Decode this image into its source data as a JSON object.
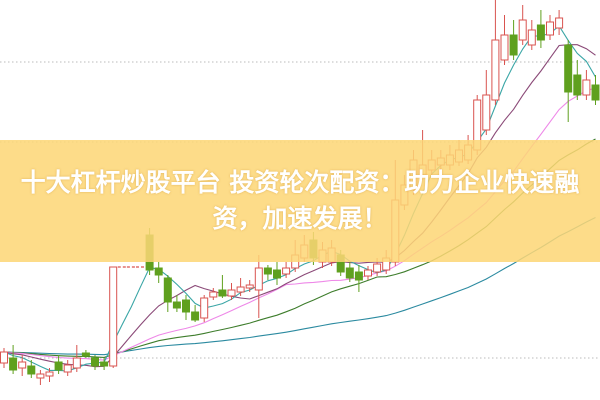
{
  "headline": {
    "line1": "十大杠杆炒股平台 投资轮次配资：助力企业快速融",
    "line2": "资，加速发展！"
  },
  "colors": {
    "up": "#d9534f",
    "down": "#5fa01e",
    "banner": "#fdd676",
    "grid": "#bbbbbb",
    "ma5": "#3aa6a6",
    "ma10": "#8b4a78",
    "ma20": "#ee88e8",
    "ma30": "#3e7d2c",
    "ma60": "#2b8aa0"
  },
  "chart_data": {
    "type": "candlestick",
    "title": "",
    "xlabel": "",
    "ylabel": "",
    "axes_visible": false,
    "grid": "dotted horizontal",
    "ylim": [
      0,
      20
    ],
    "moving_averages": [
      5,
      10,
      20,
      30,
      60
    ],
    "candles_ochl": [
      [
        1.85,
        2.4,
        2.6,
        1.6
      ],
      [
        2.1,
        1.5,
        2.75,
        1.3
      ],
      [
        1.6,
        1.9,
        2.25,
        1.2
      ],
      [
        1.7,
        1.3,
        2.0,
        1.1
      ],
      [
        1.1,
        1.3,
        1.5,
        0.75
      ],
      [
        1.2,
        1.4,
        1.6,
        0.9
      ],
      [
        1.9,
        1.5,
        2.25,
        1.3
      ],
      [
        1.4,
        1.75,
        2.0,
        1.2
      ],
      [
        1.6,
        2.1,
        2.75,
        1.4
      ],
      [
        2.35,
        2.2,
        2.5,
        2.1
      ],
      [
        2.1,
        1.7,
        2.25,
        1.5
      ],
      [
        1.9,
        1.7,
        2.1,
        1.5
      ],
      [
        1.7,
        6.65,
        6.65,
        1.6
      ],
      [
        6.65,
        6.65,
        6.65,
        6.65
      ],
      [
        6.65,
        6.65,
        6.65,
        6.65
      ],
      [
        6.65,
        6.65,
        6.65,
        6.65
      ],
      [
        8.25,
        6.5,
        8.6,
        6.25
      ],
      [
        6.6,
        6.25,
        6.9,
        5.85
      ],
      [
        6.1,
        4.9,
        6.25,
        4.4
      ],
      [
        4.9,
        4.6,
        5.25,
        4.4
      ],
      [
        5.0,
        4.4,
        5.25,
        4.0
      ],
      [
        4.4,
        4.0,
        4.75,
        3.9
      ],
      [
        4.1,
        5.1,
        5.25,
        3.9
      ],
      [
        5.15,
        5.4,
        5.6,
        5.0
      ],
      [
        5.5,
        5.2,
        6.25,
        5.1
      ],
      [
        5.2,
        5.5,
        5.85,
        5.0
      ],
      [
        5.4,
        5.65,
        6.1,
        5.2
      ],
      [
        5.6,
        5.75,
        6.0,
        5.4
      ],
      [
        5.5,
        6.6,
        7.25,
        4.1
      ],
      [
        6.6,
        6.3,
        6.75,
        6.0
      ],
      [
        6.5,
        6.1,
        6.9,
        5.75
      ],
      [
        6.3,
        6.6,
        6.9,
        6.1
      ],
      [
        6.6,
        7.25,
        8.0,
        6.4
      ],
      [
        7.1,
        7.75,
        8.25,
        6.9
      ],
      [
        8.0,
        7.1,
        8.4,
        6.75
      ],
      [
        6.9,
        7.5,
        7.9,
        6.6
      ],
      [
        6.9,
        7.6,
        8.0,
        6.7
      ],
      [
        7.25,
        6.4,
        7.5,
        6.2
      ],
      [
        6.6,
        6.1,
        6.9,
        5.9
      ],
      [
        6.4,
        6.0,
        6.75,
        5.4
      ],
      [
        6.2,
        6.5,
        6.7,
        6.0
      ],
      [
        6.4,
        6.8,
        7.1,
        6.2
      ],
      [
        6.5,
        7.1,
        7.5,
        6.3
      ],
      [
        6.9,
        10.0,
        12.0,
        6.7
      ],
      [
        9.75,
        10.75,
        11.25,
        9.5
      ],
      [
        10.5,
        12.0,
        12.5,
        10.25
      ],
      [
        11.25,
        11.75,
        13.5,
        11.0
      ],
      [
        11.5,
        12.0,
        12.5,
        11.25
      ],
      [
        11.75,
        12.1,
        12.5,
        11.5
      ],
      [
        11.75,
        12.25,
        12.75,
        11.5
      ],
      [
        11.9,
        12.5,
        13.0,
        11.7
      ],
      [
        12.0,
        12.75,
        13.25,
        11.8
      ],
      [
        12.5,
        15.0,
        15.25,
        12.25
      ],
      [
        13.5,
        15.25,
        16.5,
        13.25
      ],
      [
        15.0,
        18.0,
        20.0,
        14.75
      ],
      [
        17.0,
        18.25,
        19.25,
        16.75
      ],
      [
        18.25,
        17.25,
        19.0,
        17.0
      ],
      [
        18.0,
        19.0,
        19.75,
        17.75
      ],
      [
        17.75,
        18.5,
        19.0,
        17.5
      ],
      [
        18.75,
        18.0,
        19.5,
        17.6
      ],
      [
        18.25,
        18.9,
        19.25,
        18.0
      ],
      [
        18.6,
        19.1,
        19.5,
        18.25
      ],
      [
        17.75,
        15.4,
        18.0,
        13.9
      ],
      [
        16.25,
        15.25,
        17.0,
        15.0
      ],
      [
        15.25,
        16.0,
        16.5,
        15.0
      ],
      [
        15.75,
        15.0,
        16.25,
        14.75
      ]
    ]
  }
}
